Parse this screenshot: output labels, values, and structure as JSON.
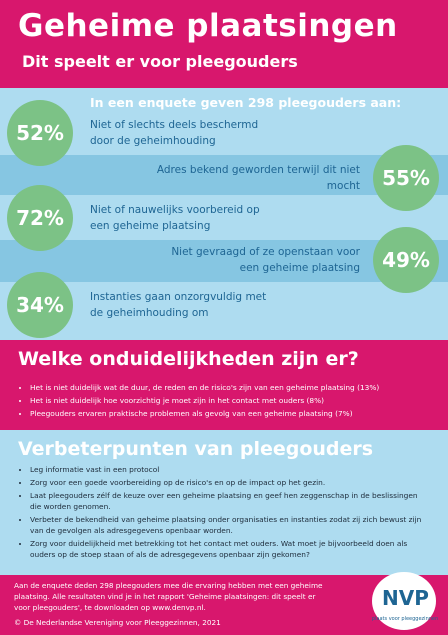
{
  "header": {
    "title": "Geheime plaatsingen",
    "subtitle": "Dit speelt er voor pleegouders"
  },
  "survey": {
    "intro": "In een enquete geven 298 pleegouders aan:",
    "items": [
      {
        "percent": "52%",
        "text": "Niet of slechts deels beschermd door de geheimhouding"
      },
      {
        "percent": "55%",
        "text": "Adres bekend geworden terwijl dit niet mocht"
      },
      {
        "percent": "72%",
        "text": "Niet of nauwelijks voorbereid op een geheime plaatsing"
      },
      {
        "percent": "49%",
        "text": "Niet gevraagd of ze openstaan voor een geheime plaatsing"
      },
      {
        "percent": "34%",
        "text": "Instanties gaan onzorgvuldig met de geheimhouding om"
      }
    ]
  },
  "unclear": {
    "title": "Welke onduidelijkheden zijn er?",
    "bullets": [
      "Het is niet duidelijk wat de duur, de reden en de risico's zijn van een geheime plaatsing (13%)",
      "Het is niet duidelijk hoe voorzichtig je moet zijn in het contact met ouders (8%)",
      "Pleegouders ervaren praktische problemen als gevolg van een geheime plaatsing (7%)"
    ]
  },
  "improvements": {
    "title": "Verbeterpunten van pleegouders",
    "bullets": [
      "Leg informatie vast in een protocol",
      "Zorg voor een goede voorbereiding op de risico's en op de impact op het gezin.",
      "Laat pleegouders zélf de keuze over een geheime plaatsing en geef hen zeggenschap in de beslissingen die worden genomen.",
      "Verbeter de bekendheid van geheime plaatsing onder organisaties en instanties zodat zij zich bewust zijn van de gevolgen als adresgegevens openbaar worden.",
      "Zorg voor duidelijkheid met betrekking tot het contact met ouders. Wat moet je bijvoorbeeld doen als ouders op de stoep staan of als de adresgegevens openbaar zijn gekomen?"
    ]
  },
  "footer": {
    "text": "Aan de enquete deden 298 pleegouders mee die ervaring hebben met een geheime plaatsing. Alle resultaten vind je in het rapport 'Geheime plaatsingen: dit speelt er voor pleegouders', te downloaden op www.denvp.nl.",
    "copyright": "© De Nederlandse Vereniging voor Pleeggezinnen, 2021",
    "logo": "NVP",
    "tagline": "plaats voor pleeggezinnen"
  }
}
